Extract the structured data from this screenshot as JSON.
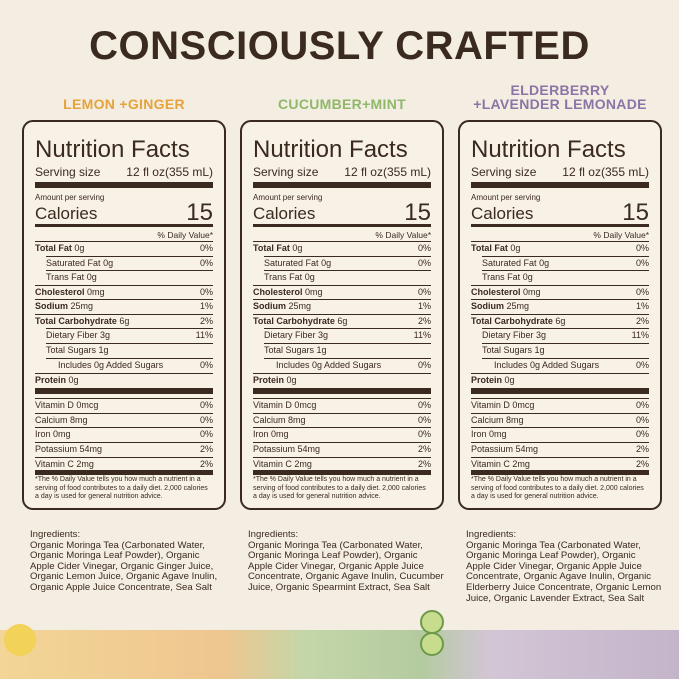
{
  "title": "CONSCIOUSLY CRAFTED",
  "panels": [
    {
      "flavor": [
        "LEMON +GINGER"
      ],
      "color": "#e4a33c",
      "facts": {
        "title": "Nutrition Facts",
        "serving_label": "Serving size",
        "serving": "12 fl oz(355 mL)",
        "amount_per_serving": "Amount per serving",
        "calories_label": "Calories",
        "calories": 15,
        "dv_header": "% Daily Value*",
        "rows": [
          [
            "Total Fat",
            "0g",
            "0%"
          ],
          [
            "Saturated Fat",
            "0g",
            "0%"
          ],
          [
            "Trans Fat",
            "0g"
          ],
          [
            "Cholesterol",
            "0mg",
            "0%"
          ],
          [
            "Sodium",
            "25mg",
            "1%"
          ],
          [
            "Total Carbohydrate",
            "6g",
            "2%"
          ],
          [
            "Dietary Fiber",
            "3g",
            "11%"
          ],
          [
            "Total Sugars",
            "1g"
          ],
          [
            "Includes 0g Added Sugars",
            "0%"
          ],
          [
            "Protein",
            "0g"
          ],
          [
            "Vitamin D",
            "0mcg",
            "0%"
          ],
          [
            "Calcium",
            "8mg",
            "0%"
          ],
          [
            "Iron",
            "0mg",
            "0%"
          ],
          [
            "Potassium",
            "54mg",
            "2%"
          ],
          [
            "Vitamin C",
            "2mg",
            "2%"
          ]
        ],
        "footnote": "*The % Daily Value tells you how much a nutrient in a serving of food contributes to a daily diet. 2,000 calories a day is used for general nutrition advice."
      },
      "ingredients_label": "Ingredients:",
      "ingredients": "Organic Moringa Tea (Carbonated Water, Organic Moringa Leaf Powder), Organic Apple Cider Vinegar, Organic Ginger Juice, Organic Lemon Juice, Organic Agave Inulin, Organic Apple Juice Concentrate, Sea Salt"
    },
    {
      "flavor": [
        "CUCUMBER+MINT"
      ],
      "color": "#8fb86a",
      "facts": {
        "title": "Nutrition Facts",
        "serving_label": "Serving size",
        "serving": "12 fl oz(355 mL)",
        "amount_per_serving": "Amount per serving",
        "calories_label": "Calories",
        "calories": 15,
        "dv_header": "% Daily Value*",
        "rows": [
          [
            "Total Fat",
            "0g",
            "0%"
          ],
          [
            "Saturated Fat",
            "0g",
            "0%"
          ],
          [
            "Trans Fat",
            "0g"
          ],
          [
            "Cholesterol",
            "0mg",
            "0%"
          ],
          [
            "Sodium",
            "25mg",
            "1%"
          ],
          [
            "Total Carbohydrate",
            "6g",
            "2%"
          ],
          [
            "Dietary Fiber",
            "3g",
            "11%"
          ],
          [
            "Total Sugars",
            "1g"
          ],
          [
            "Includes 0g Added Sugars",
            "0%"
          ],
          [
            "Protein",
            "0g"
          ],
          [
            "Vitamin D",
            "0mcg",
            "0%"
          ],
          [
            "Calcium",
            "8mg",
            "0%"
          ],
          [
            "Iron",
            "0mg",
            "0%"
          ],
          [
            "Potassium",
            "54mg",
            "2%"
          ],
          [
            "Vitamin C",
            "2mg",
            "2%"
          ]
        ],
        "footnote": "*The % Daily Value tells you how much a nutrient in a serving of food contributes to a daily diet. 2,000 calories a day is used for general nutrition advice."
      },
      "ingredients_label": "Ingredients:",
      "ingredients": "Organic Moringa Tea (Carbonated Water, Organic Moringa Leaf Powder), Organic Apple Cider Vinegar, Organic Apple Juice Concentrate, Organic Agave Inulin, Cucumber Juice, Organic Spearmint Extract, Sea Salt"
    },
    {
      "flavor": [
        "ELDERBERRY",
        "+LAVENDER LEMONADE"
      ],
      "color": "#8a75a6",
      "facts": {
        "title": "Nutrition Facts",
        "serving_label": "Serving size",
        "serving": "12 fl oz(355 mL)",
        "amount_per_serving": "Amount per serving",
        "calories_label": "Calories",
        "calories": 15,
        "dv_header": "% Daily Value*",
        "rows": [
          [
            "Total Fat",
            "0g",
            "0%"
          ],
          [
            "Saturated Fat",
            "0g",
            "0%"
          ],
          [
            "Trans Fat",
            "0g"
          ],
          [
            "Cholesterol",
            "0mg",
            "0%"
          ],
          [
            "Sodium",
            "25mg",
            "1%"
          ],
          [
            "Total Carbohydrate",
            "6g",
            "2%"
          ],
          [
            "Dietary Fiber",
            "3g",
            "11%"
          ],
          [
            "Total Sugars",
            "1g"
          ],
          [
            "Includes 0g Added Sugars",
            "0%"
          ],
          [
            "Protein",
            "0g"
          ],
          [
            "Vitamin D",
            "0mcg",
            "0%"
          ],
          [
            "Calcium",
            "8mg",
            "0%"
          ],
          [
            "Iron",
            "0mg",
            "0%"
          ],
          [
            "Potassium",
            "54mg",
            "2%"
          ],
          [
            "Vitamin C",
            "2mg",
            "2%"
          ]
        ],
        "footnote": "*The % Daily Value tells you how much a nutrient in a serving of food contributes to a daily diet. 2,000 calories a day is used for general nutrition advice."
      },
      "ingredients_label": "Ingredients:",
      "ingredients": "Organic Moringa Tea (Carbonated Water, Organic Moringa Leaf Powder), Organic Apple Cider Vinegar, Organic Apple Juice Concentrate, Organic Agave Inulin, Organic Elderberry Juice Concentrate, Organic Lemon Juice, Organic Lavender Extract, Sea Salt"
    }
  ]
}
